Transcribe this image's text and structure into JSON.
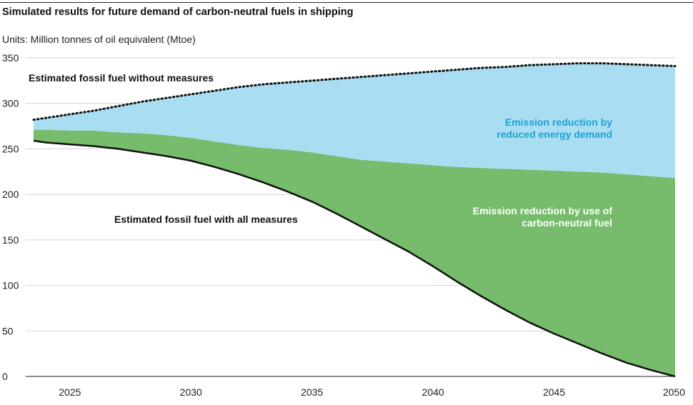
{
  "chart_data": {
    "type": "area",
    "title": "Simulated results for future demand of carbon-neutral fuels in shipping",
    "subtitle": "Units: Million tonnes of oil equivalent (Mtoe)",
    "xlim": [
      2023.5,
      2050
    ],
    "ylim": [
      0,
      350
    ],
    "x_ticks": [
      2025,
      2030,
      2035,
      2040,
      2045,
      2050
    ],
    "y_ticks": [
      0,
      50,
      100,
      150,
      200,
      250,
      300,
      350
    ],
    "grid": true,
    "x": [
      2023.5,
      2024,
      2025,
      2026,
      2027,
      2028,
      2029,
      2030,
      2031,
      2032,
      2033,
      2034,
      2035,
      2036,
      2037,
      2038,
      2039,
      2040,
      2041,
      2042,
      2043,
      2044,
      2045,
      2046,
      2047,
      2048,
      2049,
      2050
    ],
    "series": [
      {
        "key": "without_measures",
        "values": [
          282,
          284,
          288,
          292,
          297,
          302,
          306,
          310,
          314,
          318,
          321,
          323,
          325,
          327,
          329,
          331,
          333,
          335,
          337,
          339,
          340,
          342,
          343,
          344,
          344,
          343,
          342,
          341
        ],
        "color": "#111111",
        "style": "dotted"
      },
      {
        "key": "reduced_demand_boundary",
        "values": [
          271,
          271,
          270,
          270,
          268,
          267,
          265,
          262,
          258,
          254,
          251,
          249,
          246,
          242,
          238,
          236,
          234,
          232,
          230,
          229,
          228,
          227,
          226,
          225,
          224,
          222,
          220,
          218
        ],
        "color": "#77bb6c"
      },
      {
        "key": "with_all_measures",
        "values": [
          259,
          257,
          255,
          253,
          250,
          246,
          242,
          237,
          230,
          222,
          213,
          203,
          192,
          179,
          165,
          151,
          137,
          121,
          104,
          88,
          73,
          59,
          47,
          36,
          25,
          15,
          7,
          0
        ],
        "color": "#111111",
        "style": "solid"
      }
    ],
    "area_colors": {
      "reduced_energy_demand": "#a9def2",
      "carbon_neutral_fuel": "#77bb6c"
    },
    "annotations": {
      "without_measures": "Estimated fossil fuel without measures",
      "with_all_measures": "Estimated fossil fuel with all measures",
      "reduced_demand": [
        "Emission reduction by",
        "reduced energy demand"
      ],
      "carbon_neutral": [
        "Emission reduction by use of",
        "carbon-neutral fuel"
      ],
      "reduced_demand_color": "#1aa3d6",
      "carbon_neutral_color": "#ffffff"
    }
  }
}
